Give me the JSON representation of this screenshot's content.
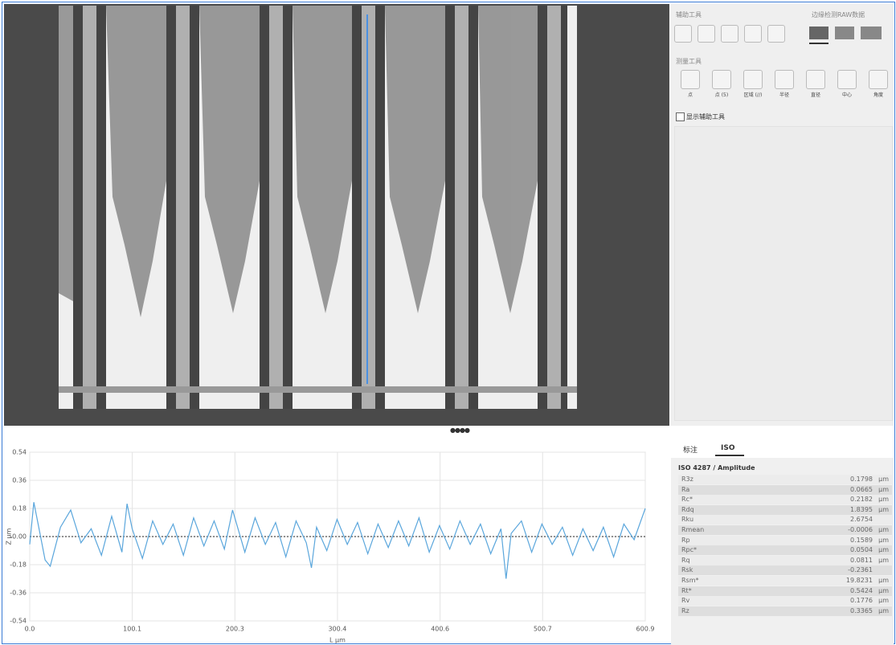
{
  "tools": {
    "aux_title": "辅助工具",
    "edge_title": "边缘检测RAW数据",
    "measure_title": "测量工具",
    "measure_tools": [
      "点",
      "点 (5)",
      "区域 (//)",
      "半径",
      "直径",
      "中心",
      "角度"
    ],
    "checkbox": "显示辅助工具"
  },
  "tabs": [
    "标注",
    "ISO"
  ],
  "table": {
    "title": "ISO 4287 / Amplitude",
    "rows": [
      {
        "name": "R3z",
        "value": "0.1798",
        "unit": "μm"
      },
      {
        "name": "Ra",
        "value": "0.0665",
        "unit": "μm"
      },
      {
        "name": "Rc*",
        "value": "0.2182",
        "unit": "μm"
      },
      {
        "name": "Rdq",
        "value": "1.8395",
        "unit": "μm"
      },
      {
        "name": "Rku",
        "value": "2.6754"
      },
      {
        "name": "Rmean",
        "value": "-0.0006",
        "unit": "μm"
      },
      {
        "name": "Rp",
        "value": "0.1589",
        "unit": "μm"
      },
      {
        "name": "Rpc*",
        "value": "0.0504",
        "unit": "μm"
      },
      {
        "name": "Rq",
        "value": "0.0811",
        "unit": "μm"
      },
      {
        "name": "Rsk",
        "value": "-0.2361"
      },
      {
        "name": "Rsm*",
        "value": "19.8231",
        "unit": "μm"
      },
      {
        "name": "Rt*",
        "value": "0.5424",
        "unit": "μm"
      },
      {
        "name": "Rv",
        "value": "0.1776",
        "unit": "μm"
      },
      {
        "name": "Rz",
        "value": "0.3365",
        "unit": "μm"
      }
    ]
  },
  "chart_data": {
    "type": "line",
    "xlabel": "L μm",
    "ylabel": "Z μm",
    "color": "#5aa6dc",
    "grid": true,
    "x": [
      0,
      4,
      10,
      15,
      20,
      30,
      40,
      50,
      60,
      70,
      80,
      90,
      95,
      100,
      110,
      120,
      130,
      140,
      150,
      160,
      170,
      180,
      190,
      198,
      210,
      220,
      230,
      240,
      250,
      260,
      270,
      275,
      280,
      290,
      300,
      310,
      320,
      330,
      340,
      350,
      360,
      370,
      380,
      390,
      400,
      410,
      420,
      430,
      440,
      450,
      460,
      465,
      470,
      480,
      490,
      500,
      510,
      520,
      530,
      540,
      550,
      560,
      570,
      580,
      590,
      600.9
    ],
    "values": [
      -0.05,
      0.22,
      0.02,
      -0.15,
      -0.19,
      0.06,
      0.17,
      -0.04,
      0.05,
      -0.12,
      0.13,
      -0.1,
      0.21,
      0.05,
      -0.14,
      0.1,
      -0.05,
      0.08,
      -0.12,
      0.12,
      -0.06,
      0.1,
      -0.08,
      0.17,
      -0.1,
      0.12,
      -0.05,
      0.09,
      -0.13,
      0.1,
      -0.04,
      -0.2,
      0.06,
      -0.09,
      0.11,
      -0.05,
      0.09,
      -0.11,
      0.08,
      -0.07,
      0.1,
      -0.06,
      0.12,
      -0.1,
      0.07,
      -0.08,
      0.1,
      -0.05,
      0.08,
      -0.11,
      0.05,
      -0.27,
      0.02,
      0.1,
      -0.1,
      0.08,
      -0.05,
      0.06,
      -0.12,
      0.05,
      -0.09,
      0.06,
      -0.13,
      0.08,
      -0.02,
      0.18
    ],
    "xlim": [
      0,
      600.9
    ],
    "xticks": [
      {
        "value": 0,
        "label": "0.0"
      },
      100.1,
      200.3,
      300.4,
      400.6,
      500.7,
      600.9
    ],
    "ylim": [
      -0.54,
      0.54
    ],
    "yticks": [
      -0.54,
      -0.36,
      -0.18,
      {
        "value": 0,
        "label": "-0.00"
      },
      0.18,
      0.36,
      0.54
    ]
  }
}
